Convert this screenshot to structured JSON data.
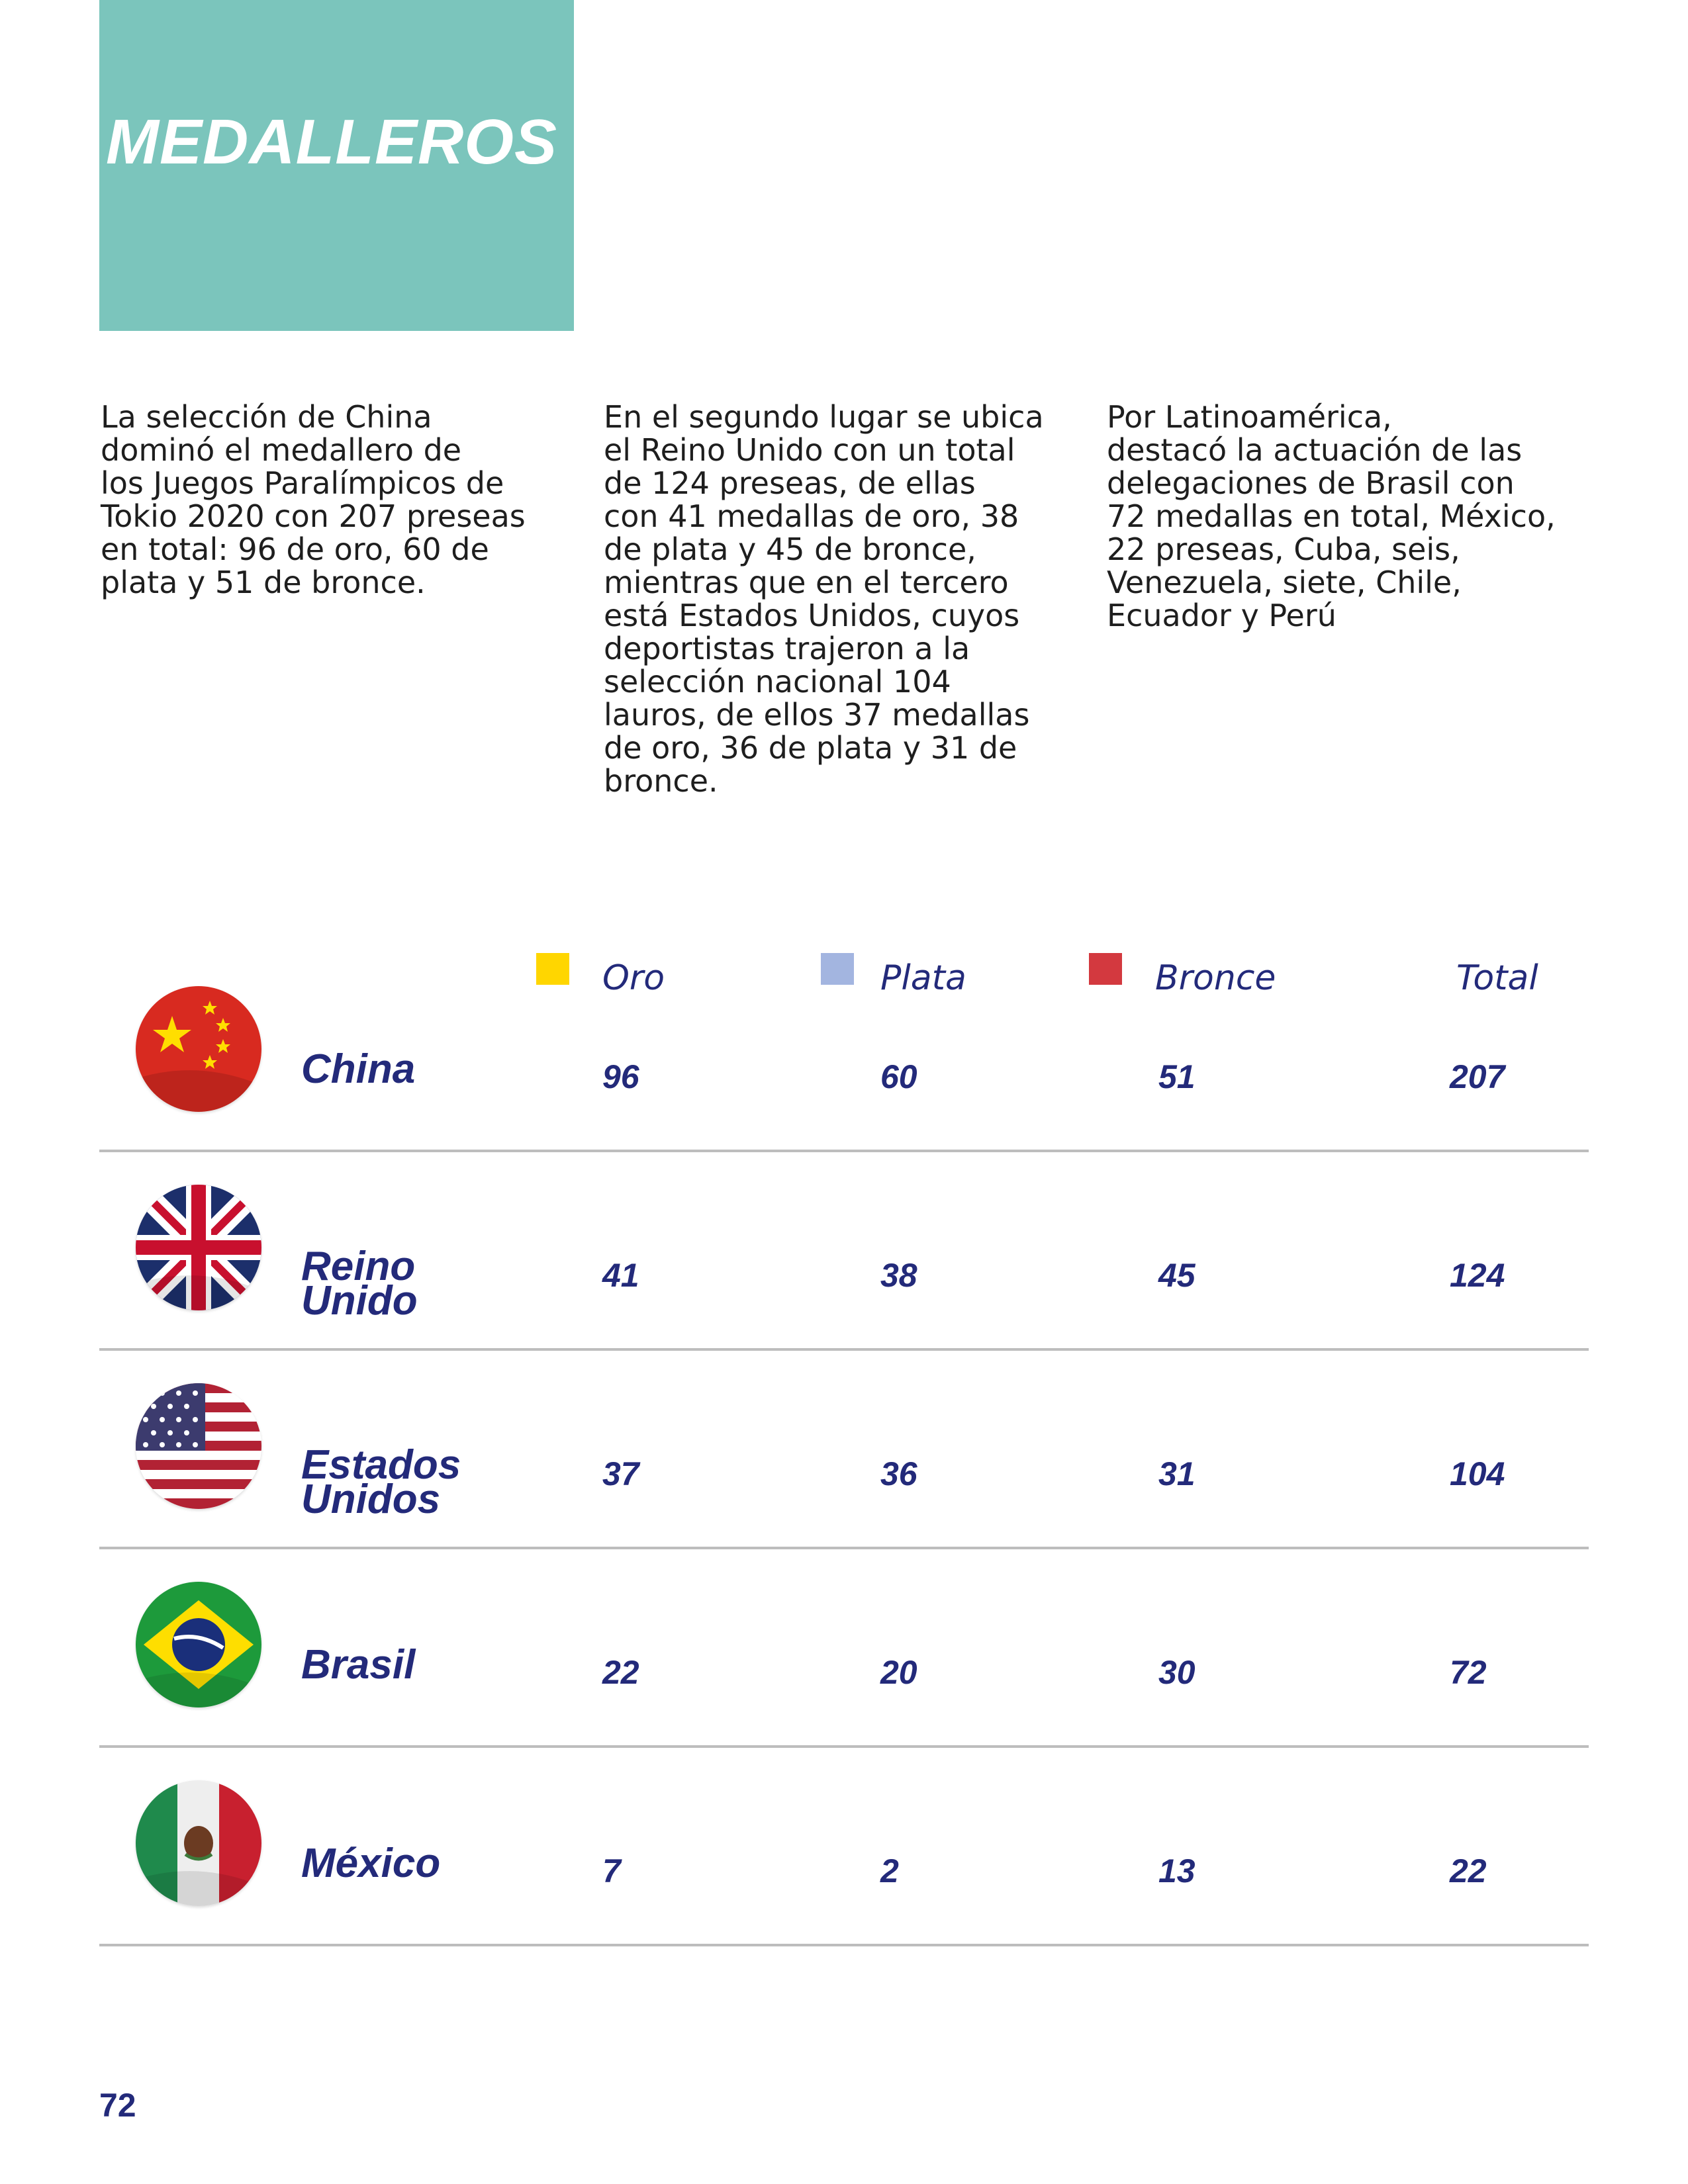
{
  "header": {
    "title": "MEDALLEROS"
  },
  "columns": [
    "La selección de China\ndominó el medallero de\nlos Juegos Paralímpicos de\nTokio 2020 con 207 preseas\nen total: 96 de oro, 60 de\nplata y 51 de bronce.",
    "En el segundo lugar se ubica\nel Reino Unido con un total\nde 124 preseas, de ellas\ncon 41 medallas de oro, 38\nde plata y 45 de bronce,\nmientras que en el tercero\nestá Estados Unidos, cuyos\ndeportistas trajeron a la\nselección nacional 104\nlauros, de ellos 37 medallas\nde oro, 36 de plata y 31 de\nbronce.",
    "Por Latinoamérica,\ndestacó la actuación de las\ndelegaciones de Brasil con\n72 medallas en total, México,\n22 preseas, Cuba, seis,\nVenezuela, siete, Chile,\nEcuador y Perú"
  ],
  "table": {
    "headers": {
      "oro": "Oro",
      "plata": "Plata",
      "bronce": "Bronce",
      "total": "Total"
    },
    "colors": {
      "oro": "#ffd600",
      "plata": "#a3b5e0",
      "bronce": "#d3393f"
    },
    "rows": [
      {
        "country": "China",
        "flag": "china-flag-icon",
        "oro": "96",
        "plata": "60",
        "bronce": "51",
        "total": "207"
      },
      {
        "country": "Reino\nUnido",
        "flag": "uk-flag-icon",
        "oro": "41",
        "plata": "38",
        "bronce": "45",
        "total": "124"
      },
      {
        "country": "Estados\nUnidos",
        "flag": "usa-flag-icon",
        "oro": "37",
        "plata": "36",
        "bronce": "31",
        "total": "104"
      },
      {
        "country": "Brasil",
        "flag": "brazil-flag-icon",
        "oro": "22",
        "plata": "20",
        "bronce": "30",
        "total": "72"
      },
      {
        "country": "México",
        "flag": "mexico-flag-icon",
        "oro": "7",
        "plata": "2",
        "bronce": "13",
        "total": "22"
      }
    ]
  },
  "footer": {
    "page_number": "72"
  }
}
